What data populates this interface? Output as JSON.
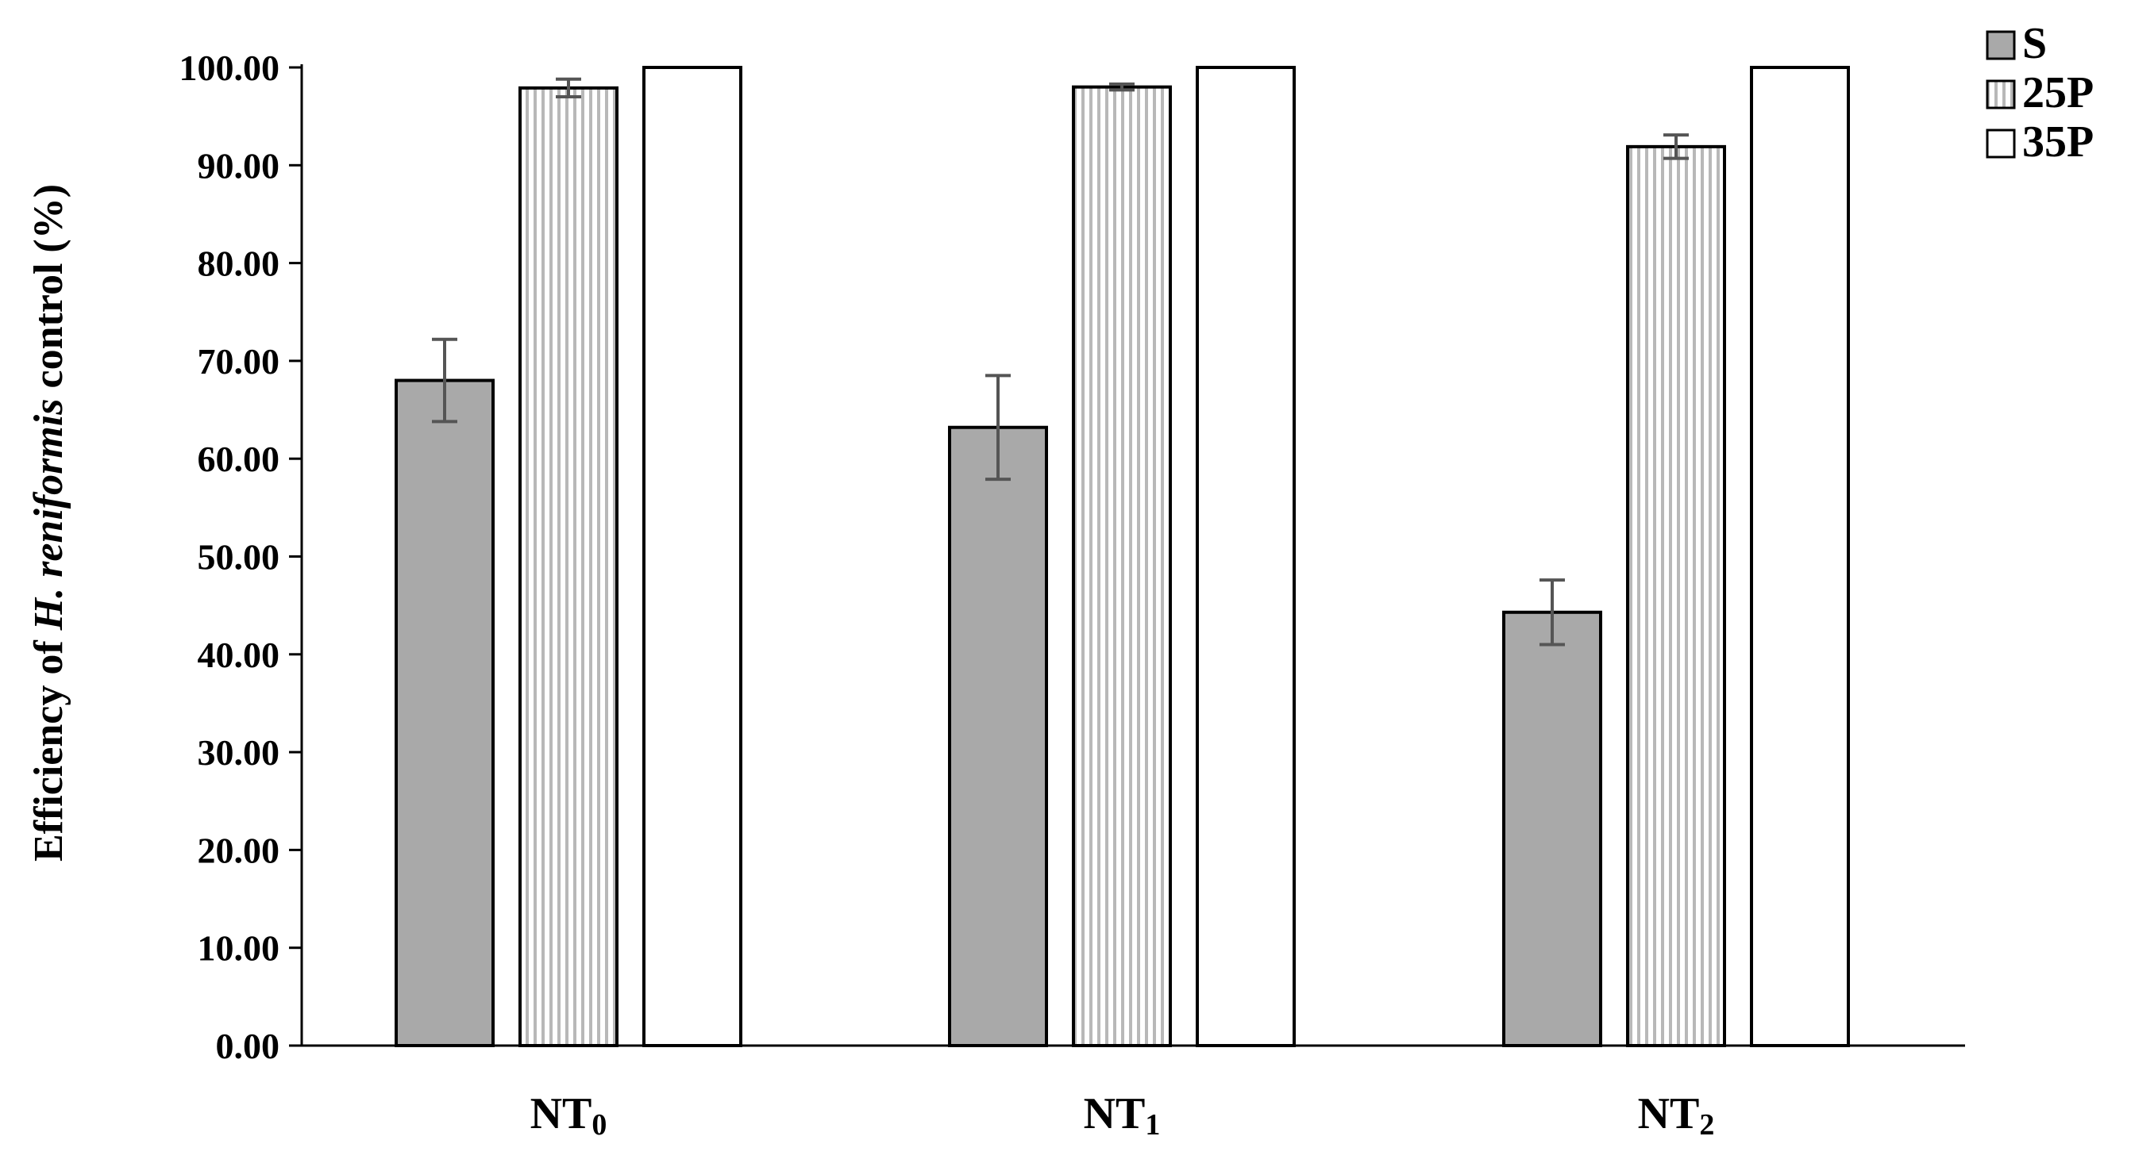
{
  "chart_data": {
    "type": "bar",
    "categories": [
      {
        "main": "NT",
        "sub": "0"
      },
      {
        "main": "NT",
        "sub": "1"
      },
      {
        "main": "NT",
        "sub": "2"
      }
    ],
    "series": [
      {
        "name": "S",
        "values": [
          68.0,
          63.2,
          44.3
        ],
        "errors": [
          4.2,
          5.3,
          3.3
        ],
        "pattern": "gray"
      },
      {
        "name": "25P",
        "values": [
          97.9,
          98.0,
          91.9
        ],
        "errors": [
          0.9,
          0.3,
          1.2
        ],
        "pattern": "vertical-stripes"
      },
      {
        "name": "35P",
        "values": [
          100.0,
          100.0,
          100.0
        ],
        "errors": [
          0,
          0,
          0
        ],
        "pattern": "white"
      }
    ],
    "ylim": [
      0,
      100
    ],
    "yticks": [
      "0.00",
      "10.00",
      "20.00",
      "30.00",
      "40.00",
      "50.00",
      "60.00",
      "70.00",
      "80.00",
      "90.00",
      "100.00"
    ],
    "ylabel": {
      "prefix": "Efficiency of ",
      "italic": "H. reniformis",
      "suffix": " control (%)"
    },
    "xlabel": "",
    "legend_position": "top-right",
    "colors": {
      "S": "#a9a9a9",
      "stripe_light": "#ffffff",
      "stripe_dark": "#b8b8b8",
      "white": "#ffffff",
      "outline": "#000000",
      "error_bar": "#555555"
    }
  }
}
